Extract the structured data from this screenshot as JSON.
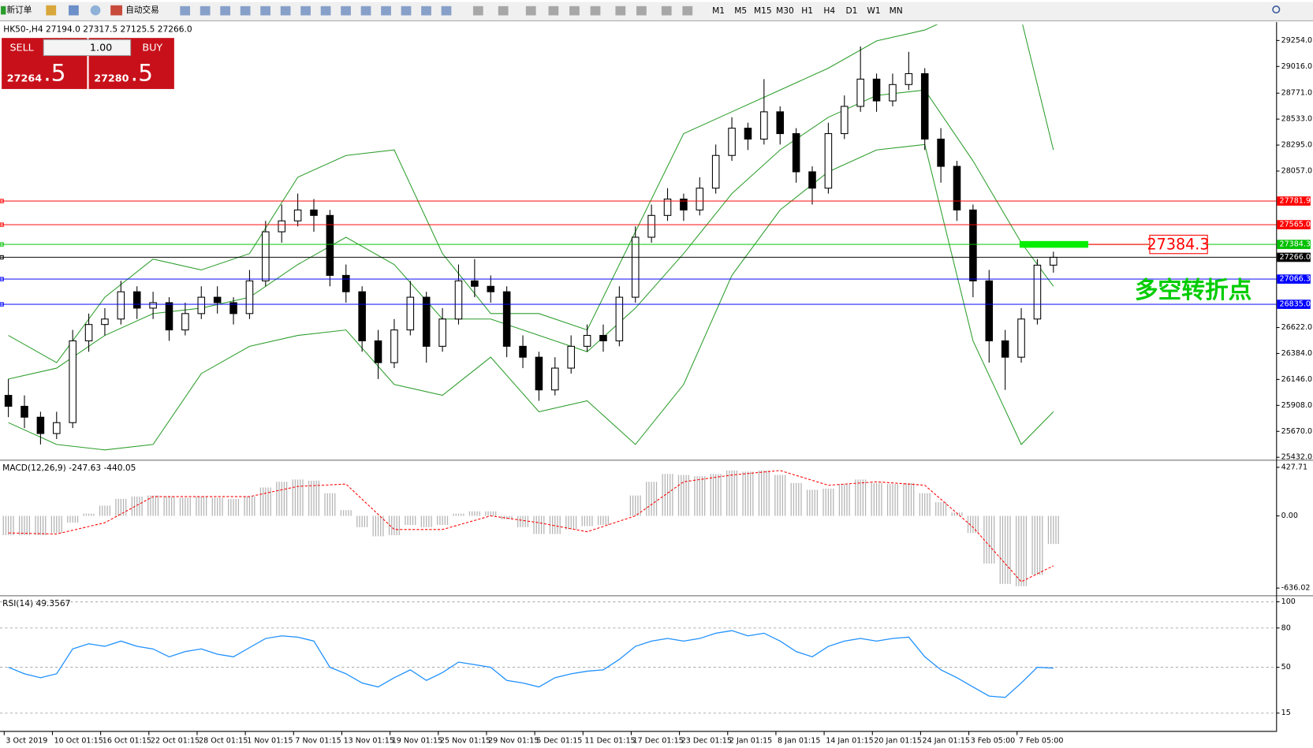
{
  "toolbar": {
    "new_order": "新订单",
    "auto_trade": "自动交易",
    "timeframes": [
      "M1",
      "M5",
      "M15",
      "M30",
      "H1",
      "H4",
      "D1",
      "W1",
      "MN"
    ]
  },
  "trade_panel": {
    "sell": "SELL",
    "buy": "BUY",
    "lots": "1.00",
    "bid_main": "27264",
    "bid_frac": ".5",
    "ask_main": "27280",
    "ask_frac": ".5"
  },
  "chart_data": [
    {
      "type": "candlestick",
      "title": "HK50-,H4  27194.0 27317.5 27125.5 27266.0",
      "up_color": "#ffffff",
      "down_color": "#000000",
      "categories": [
        "3 Oct 2019",
        null,
        null,
        "10 Oct 01:15",
        null,
        null,
        "16 Oct 01:15",
        null,
        null,
        "22 Oct 01:15",
        null,
        null,
        "28 Oct 01:15",
        null,
        null,
        "1 Nov 01:15",
        null,
        null,
        "7 Nov 01:15",
        null,
        null,
        "13 Nov 01:15",
        null,
        null,
        "19 Nov 01:15",
        null,
        null,
        "25 Nov 01:15",
        null,
        null,
        "29 Nov 01:15",
        null,
        null,
        "5 Dec 01:15",
        null,
        null,
        "11 Dec 01:15",
        null,
        null,
        "17 Dec 01:15",
        null,
        null,
        "23 Dec 01:15",
        null,
        null,
        "2 Jan 01:15",
        null,
        null,
        "8 Jan 01:15",
        null,
        null,
        "14 Jan 01:15",
        null,
        null,
        "20 Jan 01:15",
        null,
        null,
        "24 Jan 01:15",
        null,
        null,
        "3 Feb 05:00",
        null,
        null,
        "7 Feb 05:00",
        null,
        null
      ],
      "candles": [
        [
          26000,
          26150,
          25800,
          25900
        ],
        [
          25900,
          26000,
          25700,
          25800
        ],
        [
          25800,
          25850,
          25550,
          25650
        ],
        [
          25650,
          25850,
          25600,
          25750
        ],
        [
          25750,
          26600,
          25700,
          26500
        ],
        [
          26500,
          26750,
          26400,
          26650
        ],
        [
          26650,
          26800,
          26550,
          26700
        ],
        [
          26700,
          27050,
          26650,
          26950
        ],
        [
          26950,
          27000,
          26700,
          26800
        ],
        [
          26800,
          26950,
          26700,
          26850
        ],
        [
          26850,
          26900,
          26500,
          26600
        ],
        [
          26600,
          26850,
          26550,
          26750
        ],
        [
          26750,
          27000,
          26700,
          26900
        ],
        [
          26900,
          27000,
          26750,
          26850
        ],
        [
          26850,
          26900,
          26650,
          26750
        ],
        [
          26750,
          27150,
          26700,
          27050
        ],
        [
          27050,
          27600,
          27000,
          27500
        ],
        [
          27500,
          27750,
          27400,
          27600
        ],
        [
          27600,
          27850,
          27550,
          27700
        ],
        [
          27700,
          27800,
          27500,
          27650
        ],
        [
          27650,
          27700,
          27000,
          27100
        ],
        [
          27100,
          27200,
          26850,
          26950
        ],
        [
          26950,
          27000,
          26400,
          26500
        ],
        [
          26500,
          26600,
          26150,
          26300
        ],
        [
          26300,
          26700,
          26250,
          26600
        ],
        [
          26600,
          27050,
          26550,
          26900
        ],
        [
          26900,
          26950,
          26300,
          26450
        ],
        [
          26450,
          26800,
          26400,
          26700
        ],
        [
          26700,
          27200,
          26650,
          27050
        ],
        [
          27050,
          27250,
          26900,
          27000
        ],
        [
          27000,
          27100,
          26850,
          26950
        ],
        [
          26950,
          27000,
          26350,
          26450
        ],
        [
          26450,
          26550,
          26250,
          26350
        ],
        [
          26350,
          26400,
          25950,
          26050
        ],
        [
          26050,
          26350,
          26000,
          26250
        ],
        [
          26250,
          26550,
          26200,
          26450
        ],
        [
          26450,
          26650,
          26400,
          26550
        ],
        [
          26550,
          26650,
          26400,
          26500
        ],
        [
          26500,
          27000,
          26450,
          26900
        ],
        [
          26900,
          27550,
          26850,
          27450
        ],
        [
          27450,
          27750,
          27400,
          27650
        ],
        [
          27650,
          27900,
          27600,
          27800
        ],
        [
          27800,
          27850,
          27600,
          27700
        ],
        [
          27700,
          28000,
          27650,
          27900
        ],
        [
          27900,
          28300,
          27850,
          28200
        ],
        [
          28200,
          28550,
          28150,
          28450
        ],
        [
          28450,
          28500,
          28250,
          28350
        ],
        [
          28350,
          28900,
          28300,
          28600
        ],
        [
          28600,
          28650,
          28300,
          28400
        ],
        [
          28400,
          28450,
          27950,
          28050
        ],
        [
          28050,
          28100,
          27750,
          27900
        ],
        [
          27900,
          28500,
          27850,
          28400
        ],
        [
          28400,
          28750,
          28350,
          28650
        ],
        [
          28650,
          29200,
          28600,
          28900
        ],
        [
          28900,
          28950,
          28600,
          28700
        ],
        [
          28700,
          28950,
          28650,
          28850
        ],
        [
          28850,
          29150,
          28800,
          28950
        ],
        [
          28950,
          29000,
          28250,
          28350
        ],
        [
          28350,
          28450,
          27950,
          28100
        ],
        [
          28100,
          28150,
          27600,
          27700
        ],
        [
          27700,
          27750,
          26900,
          27050
        ],
        [
          27050,
          27150,
          26300,
          26500
        ],
        [
          26500,
          26600,
          26050,
          26350
        ],
        [
          26350,
          26800,
          26300,
          26700
        ],
        [
          26700,
          27250,
          26650,
          27194
        ],
        [
          27194,
          27317.5,
          27125.5,
          27266
        ]
      ],
      "bands": {
        "color": "#2e9e2e",
        "x": [
          0,
          3,
          6,
          9,
          12,
          15,
          18,
          21,
          24,
          27,
          30,
          33,
          36,
          39,
          42,
          45,
          48,
          51,
          54,
          57,
          60,
          63,
          65
        ],
        "upper": [
          26550,
          26300,
          26900,
          27250,
          27150,
          27300,
          28000,
          28200,
          28250,
          27300,
          26750,
          26750,
          26600,
          27500,
          28400,
          28600,
          28800,
          29000,
          29250,
          29350,
          29550,
          29450,
          28250
        ],
        "middle": [
          26150,
          26250,
          26550,
          26750,
          26800,
          26900,
          27200,
          27450,
          27200,
          26700,
          26700,
          26550,
          26400,
          26800,
          27300,
          27850,
          28250,
          28550,
          28750,
          28800,
          28150,
          27400,
          27000
        ],
        "lower": [
          25750,
          25550,
          25500,
          25550,
          26200,
          26450,
          26550,
          26600,
          26100,
          26000,
          26350,
          25850,
          25950,
          25550,
          26100,
          27100,
          27700,
          28050,
          28250,
          28300,
          26500,
          25550,
          25850
        ]
      },
      "ylim": [
        25417,
        29400
      ],
      "yticks": [
        {
          "value": 29254,
          "label": "29254.0"
        },
        {
          "value": 29016,
          "label": "29016.0"
        },
        {
          "value": 28771,
          "label": "28771.0"
        },
        {
          "value": 28533,
          "label": "28533.0"
        },
        {
          "value": 28295,
          "label": "28295.0"
        },
        {
          "value": 28057,
          "label": "28057.0"
        },
        {
          "value": 26622,
          "label": "26622.0"
        },
        {
          "value": 26384,
          "label": "26384.0"
        },
        {
          "value": 26146,
          "label": "26146.0"
        },
        {
          "value": 25908,
          "label": "25908.0"
        },
        {
          "value": 25670,
          "label": "25670.0"
        },
        {
          "value": 25432,
          "label": "25432.0"
        }
      ],
      "levels": [
        {
          "value": 27781.9,
          "label": "27781.9",
          "color": "#ff0000"
        },
        {
          "value": 27565,
          "label": "27565.0",
          "color": "#ff0000"
        },
        {
          "value": 27384.3,
          "label": "27384.3",
          "color": "#00c000"
        },
        {
          "value": 27266,
          "label": "27266.0",
          "color": "#000000"
        },
        {
          "value": 27066.3,
          "label": "27066.3",
          "color": "#0000ff"
        },
        {
          "value": 26835,
          "label": "26835.0",
          "color": "#0000ff"
        }
      ],
      "callout": {
        "value": 27384.3,
        "label": "27384.3",
        "color": "#ff0000",
        "bar_color": "#00ee00"
      },
      "annotation": {
        "text": "多空转折点",
        "color": "#00cc00"
      }
    },
    {
      "type": "macd",
      "title": "MACD(12,26,9) -247.63 -440.05",
      "color": "#b4b4b4",
      "values": [
        -170,
        -170,
        -170,
        -150,
        -60,
        20,
        90,
        150,
        170,
        180,
        170,
        160,
        170,
        160,
        150,
        170,
        250,
        300,
        320,
        310,
        200,
        50,
        -100,
        -180,
        -170,
        -80,
        -100,
        -80,
        20,
        40,
        40,
        -30,
        -100,
        -160,
        -160,
        -120,
        -90,
        -80,
        0,
        180,
        300,
        370,
        360,
        350,
        370,
        400,
        390,
        400,
        360,
        290,
        230,
        240,
        280,
        320,
        290,
        280,
        290,
        200,
        120,
        30,
        -150,
        -420,
        -600,
        -620,
        -520,
        -247.63
      ],
      "signal": {
        "color": "#ff0000",
        "x": [
          0,
          3,
          6,
          9,
          12,
          15,
          18,
          21,
          24,
          27,
          30,
          33,
          36,
          39,
          42,
          45,
          48,
          51,
          54,
          57,
          60,
          63,
          65
        ],
        "values": [
          -150,
          -160,
          -60,
          170,
          170,
          170,
          260,
          280,
          -120,
          -120,
          0,
          -60,
          -140,
          0,
          300,
          360,
          400,
          270,
          300,
          270,
          -100,
          -580,
          -440.05
        ]
      },
      "ylim": [
        -693,
        472
      ],
      "yticks": [
        {
          "value": 427.71,
          "label": "427.71"
        },
        {
          "value": 0,
          "label": "0.00"
        },
        {
          "value": -636.02,
          "label": "-636.02"
        }
      ]
    },
    {
      "type": "line",
      "title": "RSI(14) 49.3567",
      "color": "#1e90ff",
      "values": [
        50,
        45,
        42,
        45,
        64,
        68,
        66,
        70,
        66,
        64,
        58,
        62,
        64,
        60,
        58,
        65,
        72,
        74,
        73,
        70,
        50,
        45,
        38,
        35,
        42,
        48,
        40,
        46,
        54,
        52,
        50,
        40,
        38,
        35,
        42,
        45,
        47,
        48,
        56,
        66,
        70,
        72,
        70,
        72,
        76,
        78,
        74,
        76,
        70,
        62,
        58,
        66,
        70,
        72,
        70,
        72,
        73,
        58,
        48,
        42,
        35,
        28,
        27,
        38,
        50,
        49.3567
      ],
      "ylim": [
        2,
        103
      ],
      "yticks": [
        15,
        50,
        80,
        100
      ],
      "grid": true
    }
  ]
}
